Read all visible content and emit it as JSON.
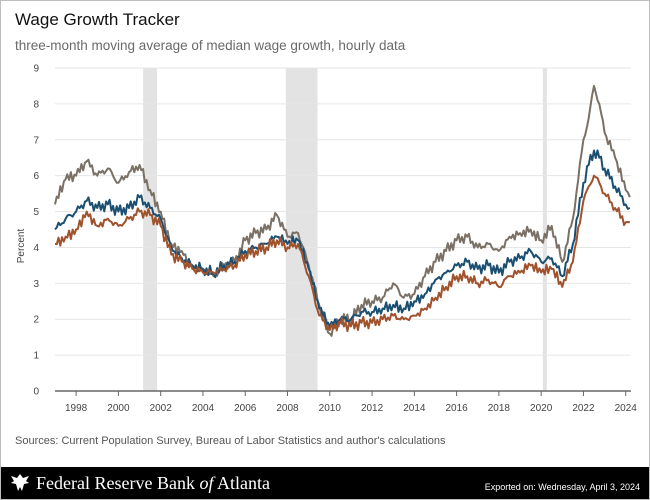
{
  "header": {
    "title": "Wage Growth Tracker",
    "subtitle": "three-month moving average of median wage growth, hourly data"
  },
  "source_note": "Sources: Current Population Survey, Bureau of Labor Statistics and author's calculations",
  "footer": {
    "bank_prefix": "Federal Reserve Bank ",
    "bank_of": "of",
    "bank_suffix": " Atlanta",
    "exported": "Exported on: Wednesday, April 3, 2024"
  },
  "chart_data": {
    "type": "line",
    "ylabel": "Percent",
    "xlabel": "",
    "ylim": [
      0,
      9
    ],
    "xlim": [
      1997.0,
      2024.25
    ],
    "yticks": [
      "0",
      "1",
      "2",
      "3",
      "4",
      "5",
      "6",
      "7",
      "8",
      "9"
    ],
    "xticks": [
      "1998",
      "2000",
      "2002",
      "2004",
      "2006",
      "2008",
      "2010",
      "2012",
      "2014",
      "2016",
      "2018",
      "2020",
      "2022",
      "2024"
    ],
    "grid": "horizontal",
    "recessions": [
      {
        "start": 2001.17,
        "end": 2001.83
      },
      {
        "start": 2007.92,
        "end": 2009.42
      },
      {
        "start": 2020.08,
        "end": 2020.25
      }
    ],
    "series": [
      {
        "color": "#7a7065",
        "x": [
          1997.0,
          1997.5,
          1998.0,
          1998.5,
          1999.0,
          1999.5,
          2000.0,
          2000.5,
          2001.0,
          2001.5,
          2002.0,
          2002.5,
          2003.0,
          2003.5,
          2004.0,
          2004.5,
          2005.0,
          2005.5,
          2006.0,
          2006.5,
          2007.0,
          2007.5,
          2008.0,
          2008.5,
          2009.0,
          2009.5,
          2010.0,
          2010.5,
          2011.0,
          2011.5,
          2012.0,
          2012.5,
          2013.0,
          2013.5,
          2014.0,
          2014.5,
          2015.0,
          2015.5,
          2016.0,
          2016.5,
          2017.0,
          2017.5,
          2018.0,
          2018.5,
          2019.0,
          2019.5,
          2020.0,
          2020.5,
          2021.0,
          2021.5,
          2022.0,
          2022.25,
          2022.5,
          2022.75,
          2023.0,
          2023.5,
          2024.0,
          2024.2
        ],
        "values": [
          5.2,
          5.9,
          6.0,
          6.4,
          6.0,
          6.2,
          5.8,
          6.1,
          6.3,
          5.6,
          5.0,
          4.1,
          3.9,
          3.5,
          3.4,
          3.2,
          3.5,
          3.6,
          4.2,
          4.4,
          4.5,
          4.9,
          4.3,
          4.4,
          3.5,
          2.4,
          1.6,
          2.0,
          2.0,
          2.4,
          2.5,
          2.6,
          3.0,
          2.6,
          2.7,
          3.2,
          3.6,
          3.9,
          4.2,
          4.3,
          4.0,
          4.1,
          3.9,
          4.3,
          4.4,
          4.5,
          4.2,
          4.6,
          3.6,
          4.8,
          7.0,
          7.6,
          8.5,
          8.0,
          7.2,
          6.5,
          5.6,
          5.4
        ]
      },
      {
        "color": "#1b4f72",
        "x": [
          1997.0,
          1997.5,
          1998.0,
          1998.5,
          1999.0,
          1999.5,
          2000.0,
          2000.5,
          2001.0,
          2001.5,
          2002.0,
          2002.5,
          2003.0,
          2003.5,
          2004.0,
          2004.5,
          2005.0,
          2005.5,
          2006.0,
          2006.5,
          2007.0,
          2007.5,
          2008.0,
          2008.5,
          2009.0,
          2009.5,
          2010.0,
          2010.5,
          2011.0,
          2011.5,
          2012.0,
          2012.5,
          2013.0,
          2013.5,
          2014.0,
          2014.5,
          2015.0,
          2015.5,
          2016.0,
          2016.5,
          2017.0,
          2017.5,
          2018.0,
          2018.5,
          2019.0,
          2019.5,
          2020.0,
          2020.5,
          2021.0,
          2021.5,
          2022.0,
          2022.25,
          2022.5,
          2022.75,
          2023.0,
          2023.5,
          2024.0,
          2024.2
        ],
        "values": [
          4.5,
          4.8,
          5.0,
          5.3,
          5.1,
          5.2,
          5.0,
          5.1,
          5.4,
          5.1,
          4.8,
          4.0,
          3.7,
          3.5,
          3.4,
          3.3,
          3.5,
          3.6,
          3.9,
          4.0,
          4.1,
          4.3,
          4.1,
          4.2,
          3.4,
          2.3,
          1.8,
          2.0,
          2.0,
          2.2,
          2.2,
          2.3,
          2.4,
          2.3,
          2.5,
          2.7,
          3.1,
          3.3,
          3.5,
          3.6,
          3.4,
          3.5,
          3.3,
          3.6,
          3.7,
          3.9,
          3.6,
          3.7,
          3.2,
          4.1,
          5.8,
          6.3,
          6.7,
          6.5,
          6.2,
          5.7,
          5.2,
          5.1
        ]
      },
      {
        "color": "#a0522d",
        "x": [
          1997.0,
          1997.5,
          1998.0,
          1998.5,
          1999.0,
          1999.5,
          2000.0,
          2000.5,
          2001.0,
          2001.5,
          2002.0,
          2002.5,
          2003.0,
          2003.5,
          2004.0,
          2004.5,
          2005.0,
          2005.5,
          2006.0,
          2006.5,
          2007.0,
          2007.5,
          2008.0,
          2008.5,
          2009.0,
          2009.5,
          2010.0,
          2010.5,
          2011.0,
          2011.5,
          2012.0,
          2012.5,
          2013.0,
          2013.5,
          2014.0,
          2014.5,
          2015.0,
          2015.5,
          2016.0,
          2016.5,
          2017.0,
          2017.5,
          2018.0,
          2018.5,
          2019.0,
          2019.5,
          2020.0,
          2020.5,
          2021.0,
          2021.5,
          2022.0,
          2022.25,
          2022.5,
          2022.75,
          2023.0,
          2023.5,
          2024.0,
          2024.2
        ],
        "values": [
          4.1,
          4.3,
          4.5,
          5.0,
          4.6,
          4.8,
          4.6,
          4.8,
          5.0,
          4.9,
          4.6,
          3.8,
          3.6,
          3.4,
          3.3,
          3.3,
          3.4,
          3.5,
          3.8,
          3.9,
          4.0,
          4.2,
          4.0,
          4.1,
          3.2,
          2.1,
          1.7,
          1.9,
          1.8,
          1.9,
          1.9,
          2.0,
          2.1,
          2.0,
          2.1,
          2.3,
          2.6,
          2.9,
          3.2,
          3.2,
          3.0,
          3.1,
          2.9,
          3.2,
          3.3,
          3.5,
          3.3,
          3.4,
          2.9,
          3.6,
          5.3,
          5.7,
          6.0,
          5.8,
          5.5,
          5.1,
          4.7,
          4.7
        ]
      }
    ]
  }
}
